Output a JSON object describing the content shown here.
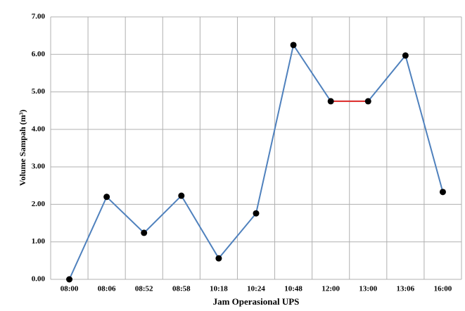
{
  "chart_data": {
    "type": "line",
    "xlabel": "Jam Operasional UPS",
    "ylabel": "Volume Sampah (m³)",
    "categories": [
      "08:00",
      "08:06",
      "08:52",
      "08:58",
      "10:18",
      "10:24",
      "10:48",
      "12:00",
      "13:00",
      "13:06",
      "16:00"
    ],
    "series": [
      {
        "color": "#4f81bd",
        "values": [
          0,
          2.2,
          1.24,
          2.23,
          0.56,
          1.76,
          6.25,
          4.75,
          4.75,
          5.97,
          2.33
        ]
      }
    ],
    "highlight": {
      "from": 7,
      "to": 8,
      "color": "#e8302a"
    },
    "marker_color": "#000000",
    "ylim": [
      0,
      7
    ],
    "yticks": [
      {
        "value": 0,
        "label": "0.00"
      },
      {
        "value": 1,
        "label": "1.00"
      },
      {
        "value": 2,
        "label": "2.00"
      },
      {
        "value": 3,
        "label": "3.00"
      },
      {
        "value": 4,
        "label": "4.00"
      },
      {
        "value": 5,
        "label": "5.00"
      },
      {
        "value": 6,
        "label": "6.00"
      },
      {
        "value": 7,
        "label": "7.00"
      }
    ],
    "grid": true
  }
}
